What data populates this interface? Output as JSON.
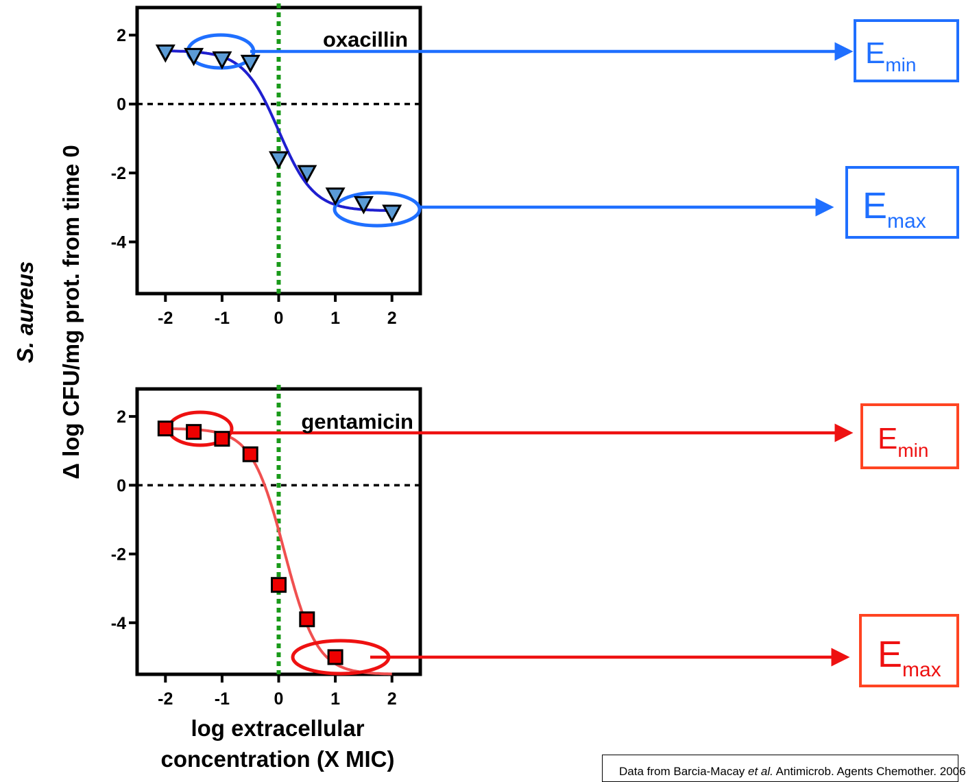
{
  "colors": {
    "oxacillin_marker": "#5b9bd5",
    "oxacillin_curve": "#1f1fcf",
    "oxacillin_annot": "#1f6fff",
    "gentamicin_marker": "#ee0000",
    "gentamicin_curve": "#f05050",
    "gentamicin_annot": "#ee1111",
    "mic_line": "#1a9a1a",
    "zero_line": "#000000"
  },
  "y_axis_label_italic": "S. aureus",
  "y_axis_label": "Δ log CFU/mg prot. from time 0",
  "x_axis_label_line1": "log extracellular",
  "x_axis_label_line2": "concentration (X MIC)",
  "emin": {
    "main": "E",
    "sub": "min"
  },
  "emax": {
    "main": "E",
    "sub": "max"
  },
  "footnote": {
    "pre": "Data from Barcia-Macay ",
    "italic": "et al.",
    "post": " Antimicrob. Agents Chemother. 2006"
  },
  "chart_data": [
    {
      "type": "scatter",
      "title": "oxacillin",
      "series": [
        {
          "name": "oxacillin",
          "marker": "triangle-down",
          "x": [
            -2,
            -1.5,
            -1,
            -0.5,
            0,
            0.5,
            1,
            1.5,
            2
          ],
          "y": [
            1.5,
            1.4,
            1.3,
            1.2,
            -1.6,
            -2.0,
            -2.65,
            -2.9,
            -3.15
          ]
        }
      ],
      "fit": {
        "top": 1.55,
        "bottom": -3.1,
        "logEC50": 0.0,
        "slope": 1.4
      },
      "xlim": [
        -2.5,
        2.5
      ],
      "ylim": [
        -5.5,
        2.8
      ],
      "xticks": [
        "-2",
        "-1",
        "0",
        "1",
        "2"
      ],
      "yticks": [
        "2",
        "0",
        "-2",
        "-4"
      ],
      "hlines": [
        0
      ],
      "vlines": [
        0
      ],
      "annotations": [
        {
          "label": "Emin",
          "x": -1.0,
          "y": 1.45
        },
        {
          "label": "Emax",
          "x": 1.45,
          "y": -3.1
        }
      ]
    },
    {
      "type": "scatter",
      "title": "gentamicin",
      "series": [
        {
          "name": "gentamicin",
          "marker": "square",
          "x": [
            -2,
            -1.5,
            -1,
            -0.5,
            0,
            0.5,
            1
          ],
          "y": [
            1.65,
            1.55,
            1.35,
            0.9,
            -2.9,
            -3.9,
            -5.0
          ]
        }
      ],
      "fit": {
        "top": 1.65,
        "bottom": -5.5,
        "logEC50": 0.1,
        "slope": 1.5
      },
      "xlim": [
        -2.5,
        2.5
      ],
      "ylim": [
        -5.5,
        2.8
      ],
      "xticks": [
        "-2",
        "-1",
        "0",
        "1",
        "2"
      ],
      "yticks": [
        "2",
        "0",
        "-2",
        "-4"
      ],
      "hlines": [
        0
      ],
      "vlines": [
        0
      ],
      "annotations": [
        {
          "label": "Emin",
          "x": -1.45,
          "y": 1.5
        },
        {
          "label": "Emax",
          "x": 1.0,
          "y": -5.0
        }
      ]
    }
  ]
}
